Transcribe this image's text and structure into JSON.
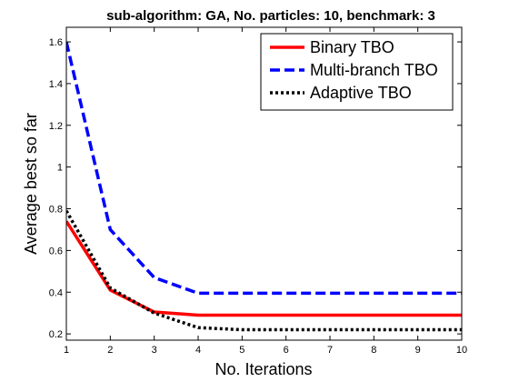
{
  "chart_data": {
    "type": "line",
    "title": "sub-algorithm: GA, No. particles: 10, benchmark: 3",
    "xlabel": "No. Iterations",
    "ylabel": "Average best so far",
    "x": [
      1,
      2,
      3,
      4,
      5,
      6,
      7,
      8,
      9,
      10
    ],
    "xlim": [
      1,
      10
    ],
    "ylim": [
      0.17,
      1.67
    ],
    "xticks": [
      "1",
      "2",
      "3",
      "4",
      "5",
      "6",
      "7",
      "8",
      "9",
      "10"
    ],
    "yticks": [
      "0.2",
      "0.4",
      "0.6",
      "0.8",
      "1",
      "1.2",
      "1.4",
      "1.6"
    ],
    "grid": false,
    "legend_position": "top-right",
    "series": [
      {
        "name": "Binary TBO",
        "color": "#ff0000",
        "style": "solid",
        "values": [
          0.74,
          0.41,
          0.305,
          0.29,
          0.29,
          0.29,
          0.29,
          0.29,
          0.29,
          0.29
        ]
      },
      {
        "name": "Multi-branch TBO",
        "color": "#0000ff",
        "style": "dashed",
        "values": [
          1.6,
          0.7,
          0.47,
          0.395,
          0.395,
          0.395,
          0.395,
          0.395,
          0.395,
          0.395
        ]
      },
      {
        "name": "Adaptive TBO",
        "color": "#000000",
        "style": "dotted",
        "values": [
          0.79,
          0.42,
          0.3,
          0.23,
          0.22,
          0.22,
          0.22,
          0.22,
          0.22,
          0.22
        ]
      }
    ]
  }
}
